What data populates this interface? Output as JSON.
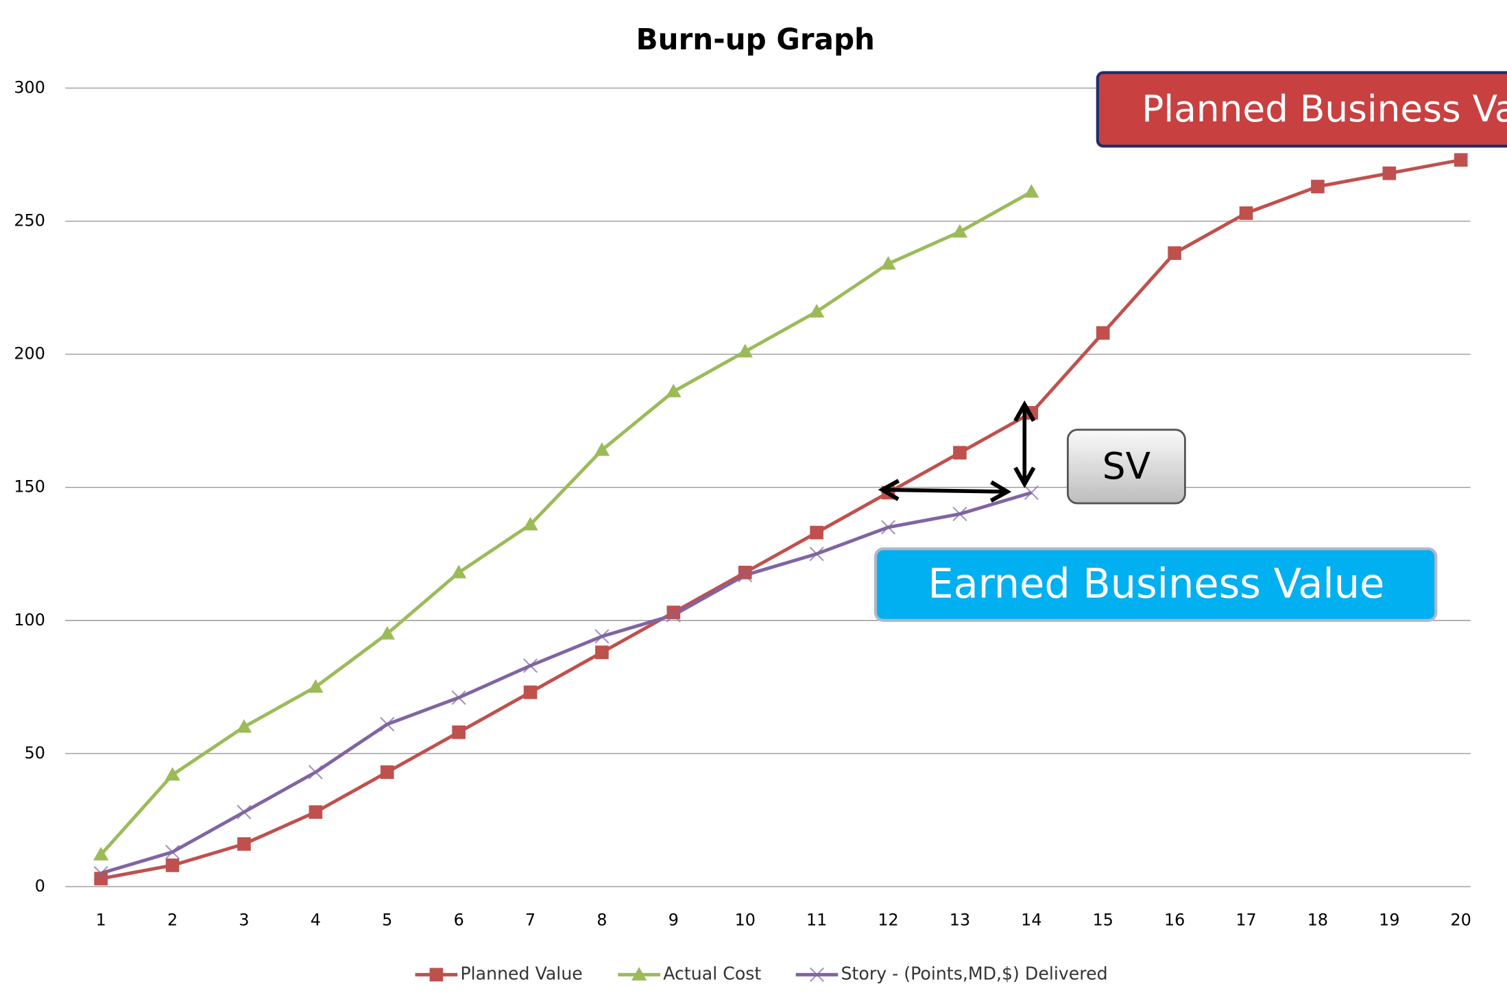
{
  "chart_data": {
    "type": "line",
    "title": "Burn-up Graph",
    "categories": [
      "1",
      "2",
      "3",
      "4",
      "5",
      "6",
      "7",
      "8",
      "9",
      "10",
      "11",
      "12",
      "13",
      "14",
      "15",
      "16",
      "17",
      "18",
      "19",
      "20"
    ],
    "series": [
      {
        "name": "Planned Value",
        "color": "#c0504d",
        "marker": "square",
        "values": [
          3,
          8,
          16,
          28,
          43,
          58,
          73,
          88,
          103,
          118,
          133,
          148,
          163,
          178,
          208,
          238,
          253,
          263,
          268,
          273
        ]
      },
      {
        "name": "Actual Cost",
        "color": "#9bbb59",
        "marker": "triangle",
        "values": [
          12,
          42,
          60,
          75,
          95,
          118,
          136,
          164,
          186,
          201,
          216,
          234,
          246,
          261,
          null,
          null,
          null,
          null,
          null,
          null
        ]
      },
      {
        "name": "Story - (Points,MD,$) Delivered",
        "color": "#8064a2",
        "marker": "x",
        "values": [
          5,
          13,
          28,
          43,
          61,
          71,
          83,
          94,
          102,
          117,
          125,
          135,
          140,
          148,
          null,
          null,
          null,
          null,
          null,
          null
        ]
      }
    ],
    "ylim": [
      0,
      300
    ],
    "yticks": [
      0,
      50,
      100,
      150,
      200,
      250,
      300
    ],
    "grid": true,
    "legend": "bottom",
    "annotations": [
      "Planned Business Value",
      "SV",
      "Earned Business Value"
    ]
  }
}
